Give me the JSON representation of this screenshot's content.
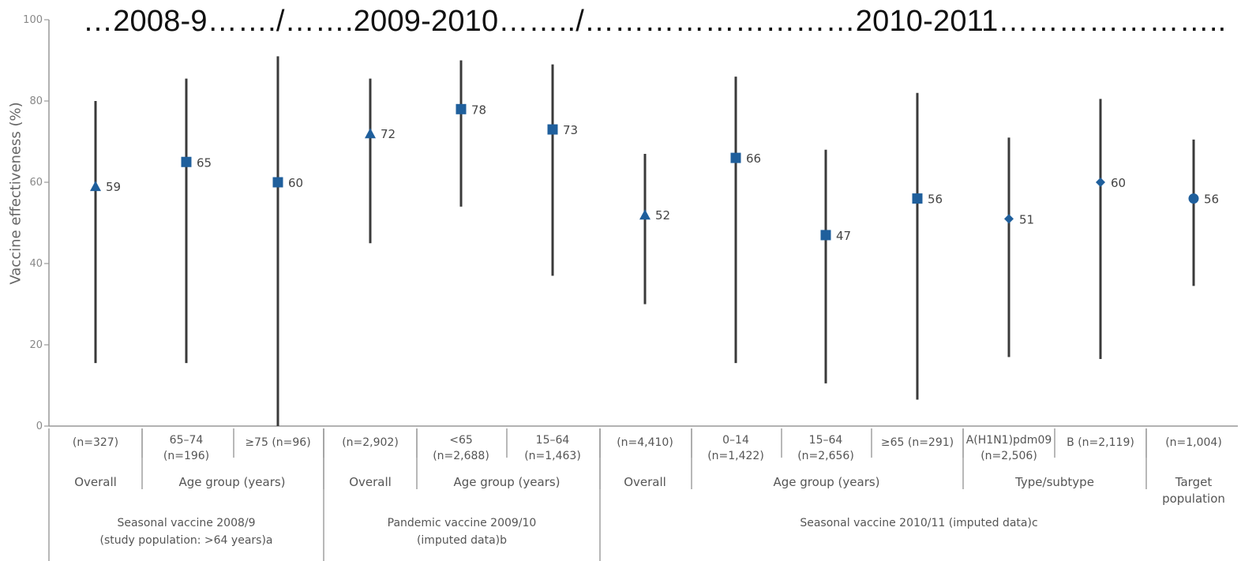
{
  "banner": "…2008-9……./…….2009-2010……../………………………2010-2011…………………..",
  "chart_data": {
    "type": "scatter",
    "ylabel": "Vaccine effectiveness (%)",
    "ylim": [
      0,
      100
    ],
    "yticks": [
      0,
      20,
      40,
      60,
      80,
      100
    ],
    "grid": false,
    "categories": [
      "(n=327)",
      "65–74 (n=196)",
      "≥75 (n=96)",
      "(n=2,902)",
      "<65 (n=2,688)",
      "15–64 (n=1,463)",
      "(n=4,410)",
      "0–14 (n=1,422)",
      "15–64 (n=2,656)",
      "≥65 (n=291)",
      "A(H1N1)pdm09 (n=2,506)",
      "B (n=2,119)",
      "(n=1,004)"
    ],
    "points": [
      {
        "label_lines": [
          "(n=327)"
        ],
        "value": 59,
        "low": 15.5,
        "high": 80,
        "marker": "triangle"
      },
      {
        "label_lines": [
          "65–74",
          "(n=196)"
        ],
        "value": 65,
        "low": 15.5,
        "high": 85.5,
        "marker": "square"
      },
      {
        "label_lines": [
          "≥75 (n=96)"
        ],
        "value": 60,
        "low": 0,
        "high": 91,
        "marker": "square"
      },
      {
        "label_lines": [
          "(n=2,902)"
        ],
        "value": 72,
        "low": 45,
        "high": 85.5,
        "marker": "triangle"
      },
      {
        "label_lines": [
          "<65",
          "(n=2,688)"
        ],
        "value": 78,
        "low": 54,
        "high": 90,
        "marker": "square"
      },
      {
        "label_lines": [
          "15–64",
          "(n=1,463)"
        ],
        "value": 73,
        "low": 37,
        "high": 89,
        "marker": "square"
      },
      {
        "label_lines": [
          "(n=4,410)"
        ],
        "value": 52,
        "low": 30,
        "high": 67,
        "marker": "triangle"
      },
      {
        "label_lines": [
          "0–14",
          "(n=1,422)"
        ],
        "value": 66,
        "low": 15.5,
        "high": 86,
        "marker": "square"
      },
      {
        "label_lines": [
          "15–64",
          "(n=2,656)"
        ],
        "value": 47,
        "low": 10.5,
        "high": 68,
        "marker": "square"
      },
      {
        "label_lines": [
          "≥65 (n=291)"
        ],
        "value": 56,
        "low": 6.5,
        "high": 82,
        "marker": "square"
      },
      {
        "label_lines": [
          "A(H1N1)pdm09",
          "(n=2,506)"
        ],
        "value": 51,
        "low": 17,
        "high": 71,
        "marker": "diamond"
      },
      {
        "label_lines": [
          "B (n=2,119)"
        ],
        "value": 60,
        "low": 16.5,
        "high": 80.5,
        "marker": "diamond"
      },
      {
        "label_lines": [
          "(n=1,004)"
        ],
        "value": 56,
        "low": 34.5,
        "high": 70.5,
        "marker": "circle"
      }
    ],
    "value_labels": [
      "59",
      "65",
      "60",
      "72",
      "78",
      "73",
      "52",
      "66",
      "47",
      "56",
      "51",
      "60",
      "56"
    ],
    "groups": [
      {
        "lines": [
          "Overall"
        ],
        "span": [
          0,
          0
        ]
      },
      {
        "lines": [
          "Age group (years)"
        ],
        "span": [
          1,
          2
        ]
      },
      {
        "lines": [
          "Overall"
        ],
        "span": [
          3,
          3
        ]
      },
      {
        "lines": [
          "Age group (years)"
        ],
        "span": [
          4,
          5
        ]
      },
      {
        "lines": [
          "Overall"
        ],
        "span": [
          6,
          6
        ]
      },
      {
        "lines": [
          "Age group (years)"
        ],
        "span": [
          7,
          9
        ]
      },
      {
        "lines": [
          "Type/subtype"
        ],
        "span": [
          10,
          11
        ]
      },
      {
        "lines": [
          "Target",
          "population"
        ],
        "span": [
          12,
          12
        ]
      }
    ],
    "sections": [
      {
        "lines": [
          "Seasonal vaccine 2008/9",
          "(study population: >64 years)a"
        ],
        "span": [
          0,
          2
        ]
      },
      {
        "lines": [
          "Pandemic vaccine 2009/10",
          "(imputed data)b"
        ],
        "span": [
          3,
          5
        ]
      },
      {
        "lines": [
          "Seasonal vaccine 2010/11 (imputed data)c"
        ],
        "span": [
          6,
          12
        ]
      }
    ],
    "marker_color": "#1f5f9c",
    "line_color": "#3a3a3a"
  }
}
